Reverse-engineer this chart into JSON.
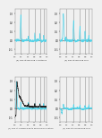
{
  "figure_bg": "#f0f0f0",
  "subplot_bg": "#f0f0f0",
  "line_color": "#56d3e8",
  "black_line_color": "#222222",
  "vline_color": "#999999",
  "hline_color": "#666666",
  "subplots": [
    {
      "label": "(a) Flux at bonding in distance",
      "ylim": [
        -0.15,
        0.35
      ],
      "ytick_vals": [
        -0.1,
        0.0,
        0.1,
        0.2,
        0.3
      ],
      "ytick_labels": [
        "-0.1",
        "0.0",
        "0.1",
        "0.2",
        "0.3"
      ],
      "vlines": [
        0.18,
        0.42,
        0.62,
        0.78,
        0.9
      ],
      "profile": "a"
    },
    {
      "label": "(b) Flux at bonding core",
      "ylim": [
        -0.15,
        0.35
      ],
      "ytick_vals": [
        -0.1,
        0.0,
        0.1,
        0.2,
        0.3
      ],
      "ytick_labels": [
        "-0.1",
        "0.0",
        "0.1",
        "0.2",
        "0.3"
      ],
      "vlines": [
        0.18,
        0.42,
        0.62,
        0.78,
        0.9
      ],
      "profile": "b"
    },
    {
      "label": "(c) Flux at nonbonding to bonding bifurcation",
      "ylim": [
        -0.15,
        0.35
      ],
      "ytick_vals": [
        -0.1,
        0.0,
        0.1,
        0.2,
        0.3
      ],
      "ytick_labels": [
        "-0.1",
        "0.0",
        "0.1",
        "0.2",
        "0.3"
      ],
      "vlines": [
        0.18,
        0.42,
        0.62,
        0.78,
        0.9
      ],
      "profile": "c"
    },
    {
      "label": "(d) Flux at nonbonding core",
      "ylim": [
        -0.15,
        0.35
      ],
      "ytick_vals": [
        -0.1,
        0.0,
        0.1,
        0.2,
        0.3
      ],
      "ytick_labels": [
        "-0.1",
        "0.0",
        "0.1",
        "0.2",
        "0.3"
      ],
      "vlines": [
        0.18,
        0.42,
        0.62,
        0.78,
        0.9
      ],
      "profile": "d"
    }
  ]
}
